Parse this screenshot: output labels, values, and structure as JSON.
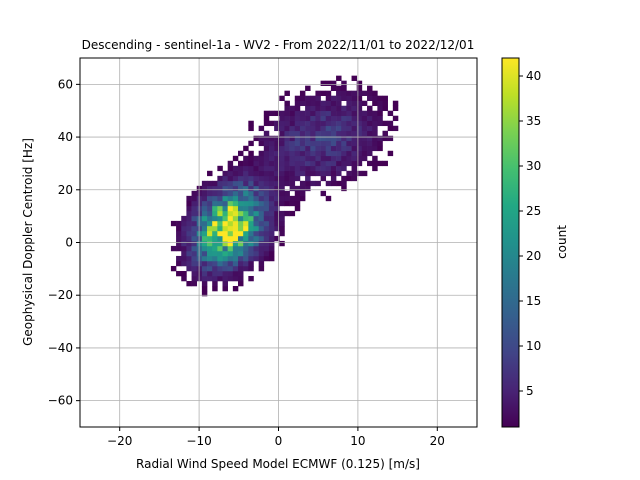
{
  "chart_data": {
    "type": "heatmap",
    "title": "Descending - sentinel-1a - WV2 - From 2022/11/01 to 2022/12/01",
    "xlabel": "Radial Wind Speed Model ECMWF (0.125) [m/s]",
    "ylabel": "Geophysical Doppler Centroid [Hz]",
    "xlim": [
      -25,
      25
    ],
    "ylim": [
      -70,
      70
    ],
    "xticks": [
      -20,
      -10,
      0,
      10,
      20
    ],
    "yticks": [
      -60,
      -40,
      -20,
      0,
      20,
      40,
      60
    ],
    "grid": true,
    "colorbar": {
      "label": "count",
      "range": [
        1,
        42
      ],
      "ticks": [
        5,
        10,
        15,
        20,
        25,
        30,
        35,
        40
      ],
      "colormap": "viridis"
    },
    "distribution": {
      "description_type": "two-component density",
      "components": [
        {
          "center_x": -6.5,
          "center_y": 5,
          "spread_x": 2.6,
          "spread_y": 7.5,
          "peak_count": 42
        },
        {
          "center_x": 5,
          "center_y": 38,
          "spread_x": 4.5,
          "spread_y": 9,
          "peak_count": 8
        }
      ],
      "x_range": [
        -15.5,
        22
      ],
      "y_range": [
        -70,
        70
      ]
    }
  }
}
